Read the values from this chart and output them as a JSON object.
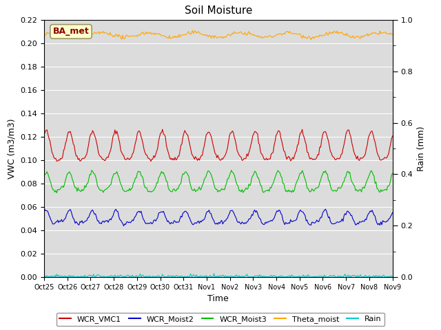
{
  "title": "Soil Moisture",
  "xlabel": "Time",
  "ylabel_left": "VWC (m3/m3)",
  "ylabel_right": "Rain (mm)",
  "ylim_left": [
    0.0,
    0.22
  ],
  "ylim_right": [
    0.0,
    1.0
  ],
  "annotation_text": "BA_met",
  "annotation_color": "#8B0000",
  "annotation_bg": "#FFFFCC",
  "annotation_border": "#999966",
  "fig_bg_color": "#FFFFFF",
  "plot_bg": "#DCDCDC",
  "legend_entries": [
    "WCR_VMC1",
    "WCR_Moist2",
    "WCR_Moist3",
    "Theta_moist",
    "Rain"
  ],
  "line_colors": {
    "WCR_VMC1": "#CC0000",
    "WCR_Moist2": "#0000CC",
    "WCR_Moist3": "#00BB00",
    "Theta_moist": "#FFA500",
    "Rain": "#00CCCC"
  },
  "n_points": 360,
  "x_tick_labels": [
    "Oct 25",
    "Oct 26",
    "Oct 27",
    "Oct 28",
    "Oct 29",
    "Oct 30",
    "Oct 31",
    "Nov 1",
    "Nov 2",
    "Nov 3",
    "Nov 4",
    "Nov 5",
    "Nov 6",
    "Nov 7",
    "Nov 8",
    "Nov 9"
  ],
  "left_yticks": [
    0.0,
    0.02,
    0.04,
    0.06,
    0.08,
    0.1,
    0.12,
    0.14,
    0.16,
    0.18,
    0.2,
    0.22
  ],
  "right_yticks": [
    0.0,
    0.2,
    0.4,
    0.6,
    0.8,
    1.0
  ]
}
